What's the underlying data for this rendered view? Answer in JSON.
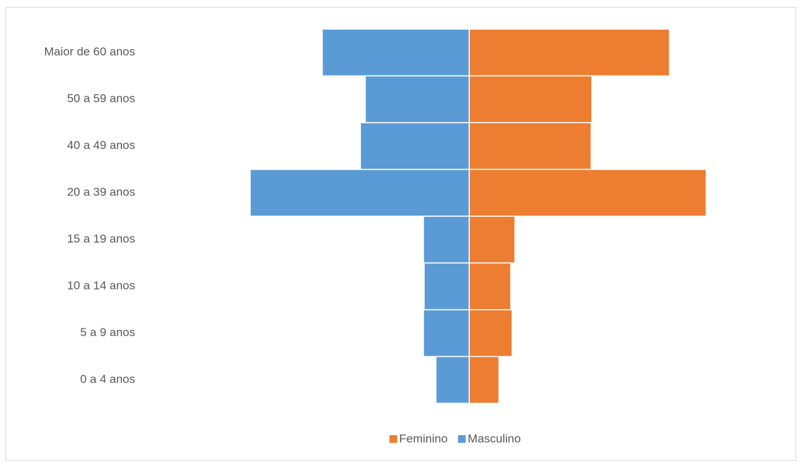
{
  "chart_data": {
    "type": "pyramid",
    "categories": [
      "Maior de 60 anos",
      "50 a 59 anos",
      "40 a 49 anos",
      "20 a 39 anos",
      "15 a 19 anos",
      "10 a 14 anos",
      "5 a 9 anos",
      "0 a 4 anos"
    ],
    "series": [
      {
        "name": "Feminino",
        "color": "#ed7d31",
        "values": [
          289,
          177,
          176,
          342,
          66,
          60,
          62,
          43
        ]
      },
      {
        "name": "Masculino",
        "color": "#5b9bd5",
        "values": [
          212,
          150,
          157,
          316,
          66,
          65,
          66,
          48
        ]
      }
    ],
    "legend": "bottom"
  }
}
